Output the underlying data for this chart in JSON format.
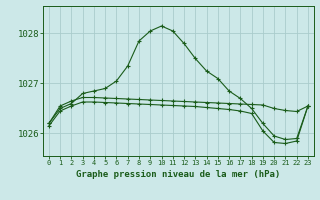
{
  "background_color": "#cce8e8",
  "grid_color": "#aacccc",
  "line_color": "#1a5c1a",
  "title": "Graphe pression niveau de la mer (hPa)",
  "xlabel_hours": [
    0,
    1,
    2,
    3,
    4,
    5,
    6,
    7,
    8,
    9,
    10,
    11,
    12,
    13,
    14,
    15,
    16,
    17,
    18,
    19,
    20,
    21,
    22,
    23
  ],
  "ylim": [
    1025.55,
    1028.55
  ],
  "yticks": [
    1026,
    1027,
    1028
  ],
  "series1": [
    1026.2,
    1026.5,
    1026.6,
    1026.8,
    1026.85,
    1026.9,
    1027.05,
    1027.35,
    1027.85,
    1028.05,
    1028.15,
    1028.05,
    1027.8,
    1027.5,
    1027.25,
    1027.1,
    1026.85,
    1026.7,
    1026.5,
    1026.2,
    1025.95,
    1025.88,
    1025.9,
    1026.55
  ],
  "series2": [
    1026.2,
    1026.55,
    1026.65,
    1026.72,
    1026.72,
    1026.71,
    1026.7,
    1026.69,
    1026.68,
    1026.67,
    1026.66,
    1026.65,
    1026.64,
    1026.63,
    1026.62,
    1026.61,
    1026.6,
    1026.59,
    1026.58,
    1026.57,
    1026.5,
    1026.46,
    1026.44,
    1026.55
  ],
  "series3": [
    1026.15,
    1026.45,
    1026.55,
    1026.63,
    1026.63,
    1026.62,
    1026.61,
    1026.6,
    1026.59,
    1026.58,
    1026.57,
    1026.56,
    1026.55,
    1026.54,
    1026.52,
    1026.5,
    1026.48,
    1026.45,
    1026.4,
    1026.05,
    1025.82,
    1025.8,
    1025.85,
    1026.55
  ]
}
